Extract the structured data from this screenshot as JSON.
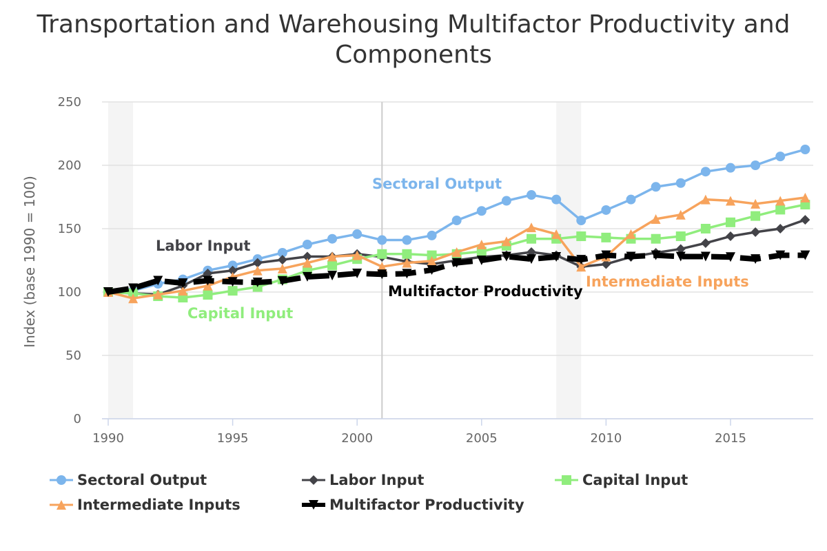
{
  "chart_data": {
    "type": "line",
    "title": "Transportation and Warehousing Multifactor Productivity and Components",
    "xlabel": "",
    "ylabel": "Index (base 1990 = 100)",
    "ylim": [
      0,
      250
    ],
    "yticks": [
      0,
      50,
      100,
      150,
      200,
      250
    ],
    "xlim": [
      1990,
      2018
    ],
    "xticks": [
      1990,
      1995,
      2000,
      2005,
      2010,
      2015
    ],
    "grid": true,
    "legend": "bottom",
    "shaded_bands": [
      [
        1990,
        1991
      ],
      [
        2008,
        2009
      ]
    ],
    "vertical_line": 2001,
    "x": [
      1990,
      1991,
      1992,
      1993,
      1994,
      1995,
      1996,
      1997,
      1998,
      1999,
      2000,
      2001,
      2002,
      2003,
      2004,
      2005,
      2006,
      2007,
      2008,
      2009,
      2010,
      2011,
      2012,
      2013,
      2014,
      2015,
      2016,
      2017,
      2018
    ],
    "series": [
      {
        "name": "Sectoral Output",
        "color": "#7cb5ec",
        "marker": "circle",
        "dash": false,
        "values": [
          100,
          101,
          106.5,
          110,
          117,
          121,
          126,
          131,
          137.5,
          142,
          145.7,
          141,
          141,
          144.6,
          156.5,
          164,
          172,
          176.6,
          173,
          156.5,
          164.7,
          173,
          183,
          186,
          195,
          198,
          200,
          207,
          212.5
        ]
      },
      {
        "name": "Labor Input",
        "color": "#434348",
        "marker": "diamond",
        "dash": false,
        "values": [
          100,
          99,
          98,
          105,
          114.7,
          117,
          123,
          125.5,
          128,
          128,
          130,
          127.7,
          124,
          122,
          125,
          127.7,
          129,
          131.5,
          129,
          120,
          122,
          127.7,
          131,
          134,
          138.6,
          144,
          147.3,
          150,
          157
        ]
      },
      {
        "name": "Capital Input",
        "color": "#90ed7d",
        "marker": "square",
        "dash": false,
        "values": [
          100,
          99,
          96.7,
          95.6,
          97.8,
          101,
          104,
          110,
          117,
          121,
          126,
          130,
          130,
          129,
          130,
          132,
          136.5,
          142,
          142,
          144,
          143,
          142,
          142,
          144,
          150,
          155,
          160,
          165,
          169
        ]
      },
      {
        "name": "Intermediate Inputs",
        "color": "#f7a35c",
        "marker": "triangle",
        "dash": false,
        "values": [
          100,
          95,
          98,
          101,
          105,
          112,
          117,
          118.5,
          123,
          128,
          129,
          120,
          123,
          124.5,
          131.5,
          137.5,
          140,
          151,
          145.7,
          120,
          128,
          145.7,
          157.6,
          161,
          173,
          172,
          169.6,
          172,
          174.5
        ]
      },
      {
        "name": "Multifactor Productivity",
        "color": "#000000",
        "marker": "triangle-down",
        "dash": true,
        "values": [
          100,
          103,
          109,
          107,
          109,
          108,
          107.6,
          108.7,
          112,
          113,
          114.7,
          114,
          114.5,
          117.4,
          123,
          125,
          128,
          126,
          127.7,
          125.5,
          129,
          128,
          129,
          128,
          128,
          127.6,
          126,
          129,
          129
        ]
      }
    ],
    "annotations": [
      {
        "text": "Sectoral Output",
        "series": 0
      },
      {
        "text": "Labor Input",
        "series": 1
      },
      {
        "text": "Capital Input",
        "series": 2
      },
      {
        "text": "Multifactor Productivity",
        "series": 4
      },
      {
        "text": "Intermediate Inputs",
        "series": 3
      }
    ]
  }
}
